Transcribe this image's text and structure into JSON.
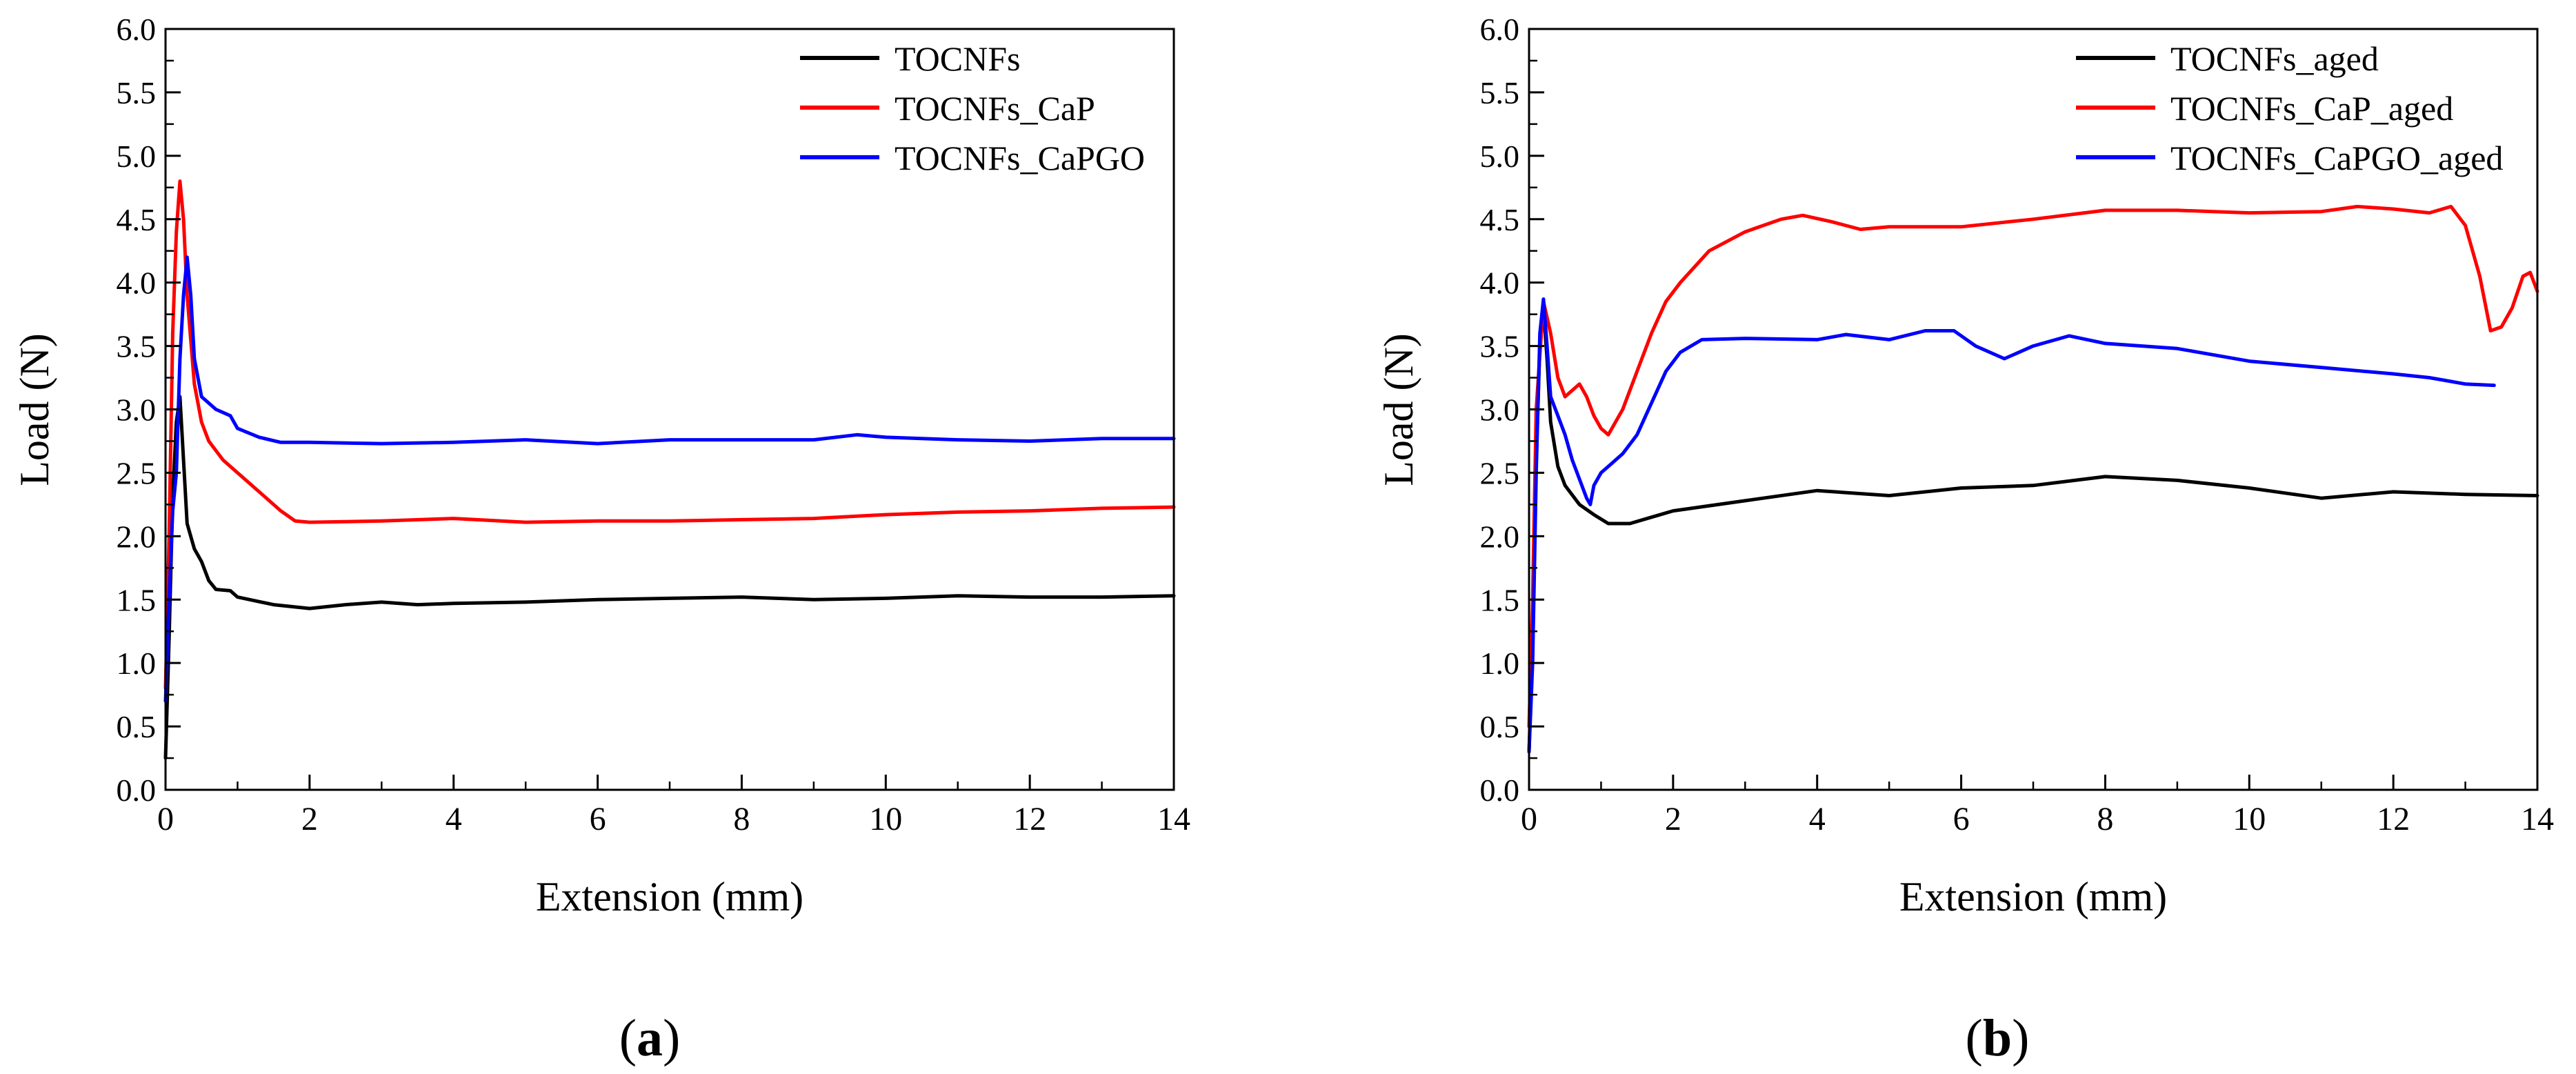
{
  "chart_data": [
    {
      "type": "line",
      "panel_label": "a",
      "xlabel": "Extension (mm)",
      "ylabel": "Load (N)",
      "xlim": [
        0,
        14
      ],
      "ylim": [
        0,
        6
      ],
      "x_ticks": [
        "0",
        "2",
        "4",
        "6",
        "8",
        "10",
        "12",
        "14"
      ],
      "y_ticks": [
        "0.0",
        "0.5",
        "1.0",
        "1.5",
        "2.0",
        "2.5",
        "3.0",
        "3.5",
        "4.0",
        "4.5",
        "5.0",
        "5.5",
        "6.0"
      ],
      "legend_position": "top-right",
      "series": [
        {
          "name": "TOCNFs",
          "color": "#000000",
          "points": [
            [
              0,
              0.25
            ],
            [
              0.05,
              1.2
            ],
            [
              0.1,
              2.3
            ],
            [
              0.15,
              2.9
            ],
            [
              0.2,
              3.1
            ],
            [
              0.25,
              2.6
            ],
            [
              0.3,
              2.1
            ],
            [
              0.4,
              1.9
            ],
            [
              0.5,
              1.8
            ],
            [
              0.6,
              1.65
            ],
            [
              0.7,
              1.58
            ],
            [
              0.9,
              1.57
            ],
            [
              1.0,
              1.52
            ],
            [
              1.5,
              1.46
            ],
            [
              2.0,
              1.43
            ],
            [
              2.5,
              1.46
            ],
            [
              3,
              1.48
            ],
            [
              3.5,
              1.46
            ],
            [
              4,
              1.47
            ],
            [
              5,
              1.48
            ],
            [
              6,
              1.5
            ],
            [
              7,
              1.51
            ],
            [
              8,
              1.52
            ],
            [
              9,
              1.5
            ],
            [
              10,
              1.51
            ],
            [
              11,
              1.53
            ],
            [
              12,
              1.52
            ],
            [
              13,
              1.52
            ],
            [
              14,
              1.53
            ]
          ]
        },
        {
          "name": "TOCNFs_CaP",
          "color": "#ff0000",
          "points": [
            [
              0,
              0.8
            ],
            [
              0.05,
              2.0
            ],
            [
              0.1,
              3.6
            ],
            [
              0.15,
              4.4
            ],
            [
              0.2,
              4.8
            ],
            [
              0.25,
              4.5
            ],
            [
              0.3,
              3.9
            ],
            [
              0.4,
              3.2
            ],
            [
              0.5,
              2.9
            ],
            [
              0.6,
              2.75
            ],
            [
              0.8,
              2.6
            ],
            [
              1.0,
              2.5
            ],
            [
              1.3,
              2.35
            ],
            [
              1.6,
              2.2
            ],
            [
              1.8,
              2.12
            ],
            [
              2,
              2.11
            ],
            [
              3,
              2.12
            ],
            [
              4,
              2.14
            ],
            [
              5,
              2.11
            ],
            [
              6,
              2.12
            ],
            [
              7,
              2.12
            ],
            [
              8,
              2.13
            ],
            [
              9,
              2.14
            ],
            [
              10,
              2.17
            ],
            [
              11,
              2.19
            ],
            [
              12,
              2.2
            ],
            [
              13,
              2.22
            ],
            [
              14,
              2.23
            ]
          ]
        },
        {
          "name": "TOCNFs_CaPGO",
          "color": "#0000ff",
          "points": [
            [
              0,
              0.7
            ],
            [
              0.05,
              1.5
            ],
            [
              0.1,
              2.2
            ],
            [
              0.15,
              2.5
            ],
            [
              0.2,
              3.4
            ],
            [
              0.25,
              3.9
            ],
            [
              0.3,
              4.2
            ],
            [
              0.35,
              3.9
            ],
            [
              0.4,
              3.4
            ],
            [
              0.5,
              3.1
            ],
            [
              0.7,
              3.0
            ],
            [
              0.9,
              2.95
            ],
            [
              1.0,
              2.85
            ],
            [
              1.3,
              2.78
            ],
            [
              1.6,
              2.74
            ],
            [
              2,
              2.74
            ],
            [
              3,
              2.73
            ],
            [
              4,
              2.74
            ],
            [
              5,
              2.76
            ],
            [
              6,
              2.73
            ],
            [
              7,
              2.76
            ],
            [
              8,
              2.76
            ],
            [
              9,
              2.76
            ],
            [
              9.6,
              2.8
            ],
            [
              10,
              2.78
            ],
            [
              11,
              2.76
            ],
            [
              12,
              2.75
            ],
            [
              13,
              2.77
            ],
            [
              14,
              2.77
            ]
          ]
        }
      ]
    },
    {
      "type": "line",
      "panel_label": "b",
      "xlabel": "Extension (mm)",
      "ylabel": "Load (N)",
      "xlim": [
        0,
        14
      ],
      "ylim": [
        0,
        6
      ],
      "x_ticks": [
        "0",
        "2",
        "4",
        "6",
        "8",
        "10",
        "12",
        "14"
      ],
      "y_ticks": [
        "0.0",
        "0.5",
        "1.0",
        "1.5",
        "2.0",
        "2.5",
        "3.0",
        "3.5",
        "4.0",
        "4.5",
        "5.0",
        "5.5",
        "6.0"
      ],
      "legend_position": "top-right",
      "series": [
        {
          "name": "TOCNFs_aged",
          "color": "#000000",
          "points": [
            [
              0,
              0.3
            ],
            [
              0.05,
              1.2
            ],
            [
              0.1,
              2.6
            ],
            [
              0.15,
              3.5
            ],
            [
              0.2,
              3.8
            ],
            [
              0.25,
              3.4
            ],
            [
              0.3,
              2.9
            ],
            [
              0.4,
              2.55
            ],
            [
              0.5,
              2.4
            ],
            [
              0.7,
              2.25
            ],
            [
              0.9,
              2.17
            ],
            [
              1.1,
              2.1
            ],
            [
              1.4,
              2.1
            ],
            [
              1.7,
              2.15
            ],
            [
              2,
              2.2
            ],
            [
              3,
              2.28
            ],
            [
              4,
              2.36
            ],
            [
              5,
              2.32
            ],
            [
              6,
              2.38
            ],
            [
              7,
              2.4
            ],
            [
              8,
              2.47
            ],
            [
              9,
              2.44
            ],
            [
              10,
              2.38
            ],
            [
              11,
              2.3
            ],
            [
              12,
              2.35
            ],
            [
              13,
              2.33
            ],
            [
              14,
              2.32
            ]
          ]
        },
        {
          "name": "TOCNFs_CaP_aged",
          "color": "#ff0000",
          "points": [
            [
              0,
              0.5
            ],
            [
              0.05,
              1.5
            ],
            [
              0.1,
              3.0
            ],
            [
              0.2,
              3.85
            ],
            [
              0.3,
              3.6
            ],
            [
              0.4,
              3.25
            ],
            [
              0.5,
              3.1
            ],
            [
              0.6,
              3.15
            ],
            [
              0.7,
              3.2
            ],
            [
              0.8,
              3.1
            ],
            [
              0.9,
              2.95
            ],
            [
              1.0,
              2.85
            ],
            [
              1.1,
              2.8
            ],
            [
              1.3,
              3.0
            ],
            [
              1.5,
              3.3
            ],
            [
              1.7,
              3.6
            ],
            [
              1.9,
              3.85
            ],
            [
              2.1,
              4.0
            ],
            [
              2.5,
              4.25
            ],
            [
              3,
              4.4
            ],
            [
              3.5,
              4.5
            ],
            [
              3.8,
              4.53
            ],
            [
              4.2,
              4.48
            ],
            [
              4.6,
              4.42
            ],
            [
              5,
              4.44
            ],
            [
              6,
              4.44
            ],
            [
              7,
              4.5
            ],
            [
              8,
              4.57
            ],
            [
              9,
              4.57
            ],
            [
              10,
              4.55
            ],
            [
              11,
              4.56
            ],
            [
              11.5,
              4.6
            ],
            [
              12,
              4.58
            ],
            [
              12.5,
              4.55
            ],
            [
              12.8,
              4.6
            ],
            [
              13.0,
              4.45
            ],
            [
              13.2,
              4.05
            ],
            [
              13.35,
              3.62
            ],
            [
              13.5,
              3.65
            ],
            [
              13.65,
              3.8
            ],
            [
              13.8,
              4.05
            ],
            [
              13.9,
              4.08
            ],
            [
              14,
              3.93
            ]
          ]
        },
        {
          "name": "TOCNFs_CaPGO_aged",
          "color": "#0000ff",
          "points": [
            [
              0,
              0.3
            ],
            [
              0.05,
              1.0
            ],
            [
              0.1,
              2.5
            ],
            [
              0.15,
              3.6
            ],
            [
              0.2,
              3.87
            ],
            [
              0.25,
              3.5
            ],
            [
              0.3,
              3.1
            ],
            [
              0.4,
              2.95
            ],
            [
              0.5,
              2.8
            ],
            [
              0.6,
              2.6
            ],
            [
              0.7,
              2.45
            ],
            [
              0.8,
              2.3
            ],
            [
              0.85,
              2.25
            ],
            [
              0.9,
              2.4
            ],
            [
              1.0,
              2.5
            ],
            [
              1.1,
              2.55
            ],
            [
              1.3,
              2.65
            ],
            [
              1.5,
              2.8
            ],
            [
              1.7,
              3.05
            ],
            [
              1.9,
              3.3
            ],
            [
              2.1,
              3.45
            ],
            [
              2.4,
              3.55
            ],
            [
              3,
              3.56
            ],
            [
              4,
              3.55
            ],
            [
              4.4,
              3.59
            ],
            [
              5,
              3.55
            ],
            [
              5.5,
              3.62
            ],
            [
              5.9,
              3.62
            ],
            [
              6.2,
              3.5
            ],
            [
              6.6,
              3.4
            ],
            [
              7,
              3.5
            ],
            [
              7.5,
              3.58
            ],
            [
              8,
              3.52
            ],
            [
              9,
              3.48
            ],
            [
              10,
              3.38
            ],
            [
              11,
              3.33
            ],
            [
              12,
              3.28
            ],
            [
              12.5,
              3.25
            ],
            [
              13,
              3.2
            ],
            [
              13.4,
              3.19
            ]
          ]
        }
      ]
    }
  ]
}
